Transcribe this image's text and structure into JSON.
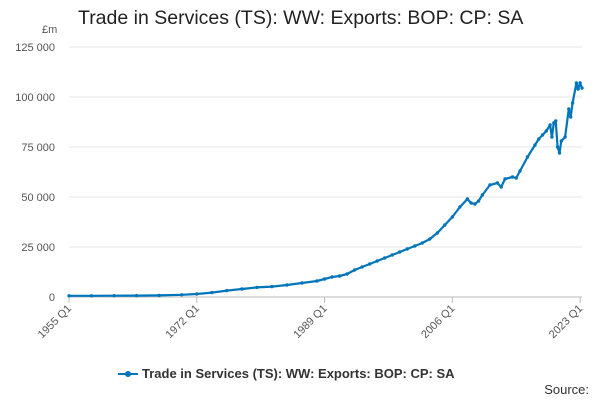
{
  "chart_data": {
    "type": "line",
    "title": "Trade in Services (TS): WW: Exports: BOP: CP: SA",
    "y_unit": "£m",
    "ylim": [
      0,
      125000
    ],
    "y_ticks": [
      0,
      25000,
      50000,
      75000,
      100000,
      125000
    ],
    "y_tick_labels": [
      "0",
      "25 000",
      "50 000",
      "75 000",
      "100 000",
      "125 000"
    ],
    "x_tick_labels": [
      "1955 Q1",
      "1972 Q1",
      "1989 Q1",
      "2006 Q1",
      "2023 Q1"
    ],
    "x_tick_years": [
      1955,
      1972,
      1989,
      2006,
      2023
    ],
    "xlim": [
      1955,
      2023.25
    ],
    "grid": true,
    "legend_position": "bottom",
    "color": "#0075bc",
    "series": [
      {
        "name": "Trade in Services (TS): WW: Exports: BOP: CP: SA",
        "x": [
          1955,
          1958,
          1961,
          1964,
          1967,
          1970,
          1972,
          1974,
          1976,
          1978,
          1980,
          1982,
          1984,
          1986,
          1988,
          1989,
          1990,
          1991,
          1992,
          1993,
          1994,
          1995,
          1996,
          1997,
          1998,
          1999,
          2000,
          2001,
          2002,
          2003,
          2004,
          2005,
          2006,
          2007,
          2008,
          2008.5,
          2009,
          2009.5,
          2010,
          2011,
          2012,
          2012.5,
          2013,
          2014,
          2014.5,
          2015,
          2016,
          2017,
          2017.5,
          2018,
          2018.5,
          2019,
          2019.25,
          2019.5,
          2019.75,
          2020,
          2020.25,
          2020.5,
          2021,
          2021.5,
          2021.75,
          2022,
          2022.5,
          2022.75,
          2023,
          2023.25
        ],
        "values": [
          600,
          620,
          660,
          720,
          820,
          1100,
          1500,
          2200,
          3200,
          4000,
          4800,
          5200,
          6000,
          7000,
          8000,
          9000,
          10000,
          10500,
          11500,
          13500,
          15000,
          16500,
          18000,
          19500,
          21000,
          22500,
          24000,
          25500,
          27000,
          29000,
          32000,
          36000,
          40000,
          45000,
          49000,
          47000,
          46500,
          48000,
          51000,
          56000,
          57000,
          55000,
          59000,
          60000,
          59500,
          63000,
          70000,
          76000,
          79000,
          81000,
          83000,
          86000,
          80000,
          87000,
          88000,
          75000,
          72000,
          78000,
          80000,
          94000,
          90000,
          97000,
          107000,
          104000,
          107000,
          104500
        ]
      }
    ]
  },
  "legend_label": "Trade in Services (TS): WW: Exports: BOP: CP: SA",
  "source_label": "Source:"
}
